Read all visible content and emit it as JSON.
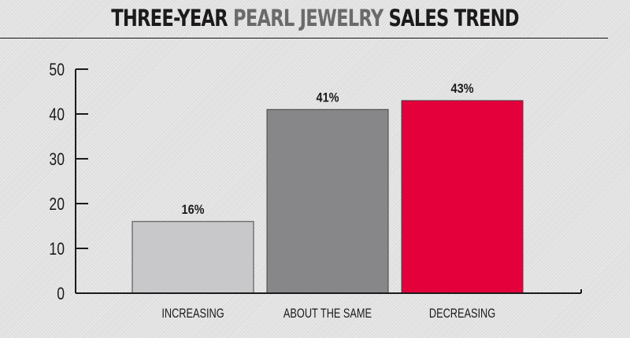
{
  "chart_data": {
    "type": "bar",
    "title_parts": [
      "THREE-YEAR",
      "PEARL JEWELRY",
      "SALES TREND"
    ],
    "categories": [
      "INCREASING",
      "ABOUT THE SAME",
      "DECREASING"
    ],
    "values": [
      16,
      41,
      43
    ],
    "data_labels": [
      "16%",
      "41%",
      "43%"
    ],
    "colors": [
      "#c8c8ca",
      "#87878a",
      "#e4003a"
    ],
    "ylim": [
      0,
      50
    ],
    "yticks": [
      "0",
      "10",
      "20",
      "30",
      "40",
      "50"
    ],
    "xlabel": "",
    "ylabel": "",
    "grid": false
  }
}
